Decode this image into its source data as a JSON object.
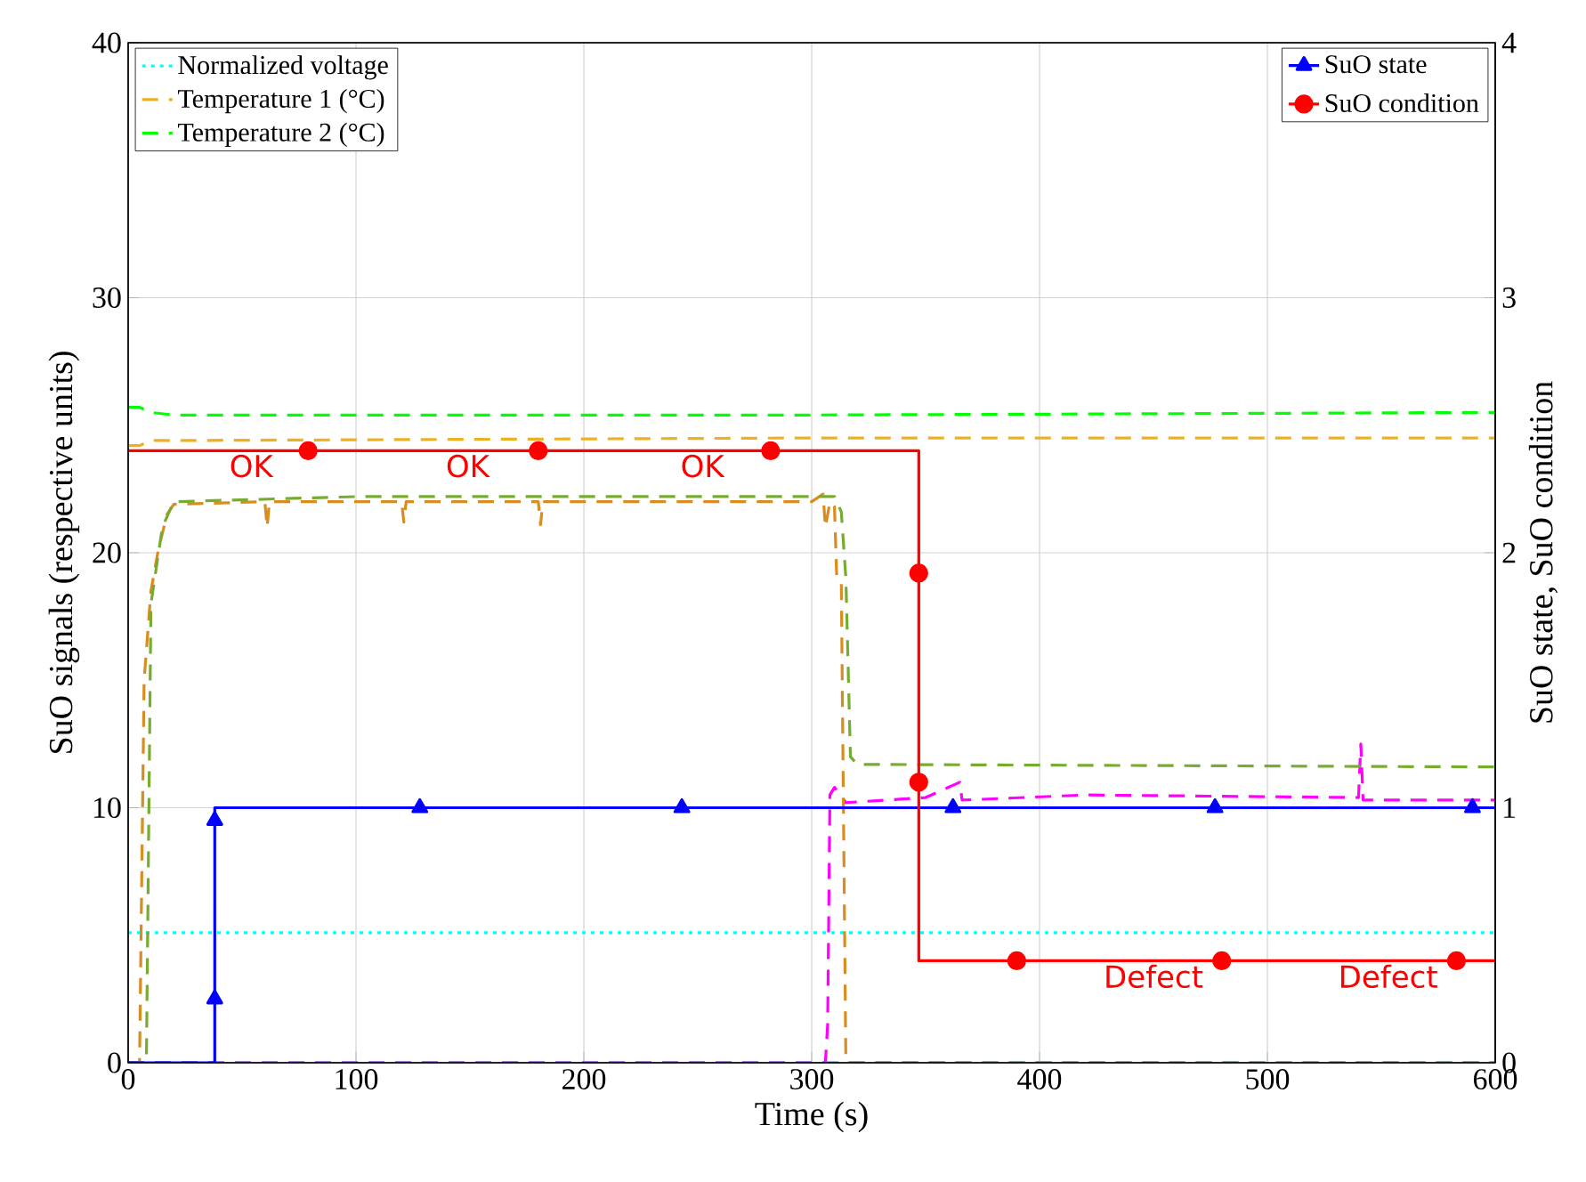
{
  "chart_data": {
    "type": "line",
    "xlabel": "Time (s)",
    "ylabel": "SuO signals (respective units)",
    "y2label": "SuO state, SuO condition",
    "xlim": [
      0,
      600
    ],
    "xticks": [
      0,
      100,
      200,
      300,
      400,
      500,
      600
    ],
    "ylim": [
      0,
      40
    ],
    "yticks": [
      0,
      10,
      20,
      30,
      40
    ],
    "y2lim": [
      0,
      4
    ],
    "y2ticks": [
      0,
      1,
      2,
      3,
      4
    ],
    "grid": true,
    "legend": "top left",
    "series": [
      {
        "name": "Normalized  voltage",
        "color": "#00ffff",
        "line_style": "dotted",
        "x": [
          0,
          600
        ],
        "values": [
          5.1,
          5.1
        ]
      },
      {
        "name": "Temperature 1 (°C)",
        "color": "#edb120",
        "line_style": "dashed",
        "x": [
          0,
          5,
          10,
          20,
          300,
          600
        ],
        "values": [
          24.2,
          24.2,
          24.4,
          24.4,
          24.5,
          24.5
        ]
      },
      {
        "name": "Temperature 2 (°C)",
        "color": "#00ff00",
        "line_style": "dashed",
        "x": [
          0,
          5,
          10,
          20,
          300,
          600
        ],
        "values": [
          25.7,
          25.7,
          25.5,
          25.4,
          25.4,
          25.5
        ]
      },
      {
        "color": "#ff00ff",
        "line_style": "dashed",
        "x": [
          0,
          306,
          307,
          308,
          310,
          315,
          350,
          365,
          366,
          420,
          540,
          541,
          542,
          600
        ],
        "values": [
          0,
          0,
          1.5,
          10.5,
          10.8,
          10.2,
          10.4,
          11.0,
          10.3,
          10.5,
          10.4,
          12.5,
          10.3,
          10.3
        ]
      },
      {
        "color": "#d98c1f",
        "line_style": "dashed",
        "x": [
          0,
          5,
          7,
          10,
          13,
          17,
          20,
          60,
          61,
          62,
          120,
          121,
          122,
          180,
          181,
          182,
          300,
          305,
          306,
          308,
          310,
          311,
          313,
          315,
          600
        ],
        "values": [
          0,
          0,
          15,
          18.5,
          20,
          21.5,
          21.9,
          22,
          21.0,
          22,
          22,
          21.2,
          22,
          22,
          21.1,
          22,
          22,
          22.3,
          21,
          22,
          21.8,
          19,
          18.8,
          0,
          0
        ]
      },
      {
        "color": "#77ac30",
        "line_style": "dashed",
        "x": [
          0,
          8,
          10,
          15,
          20,
          100,
          310,
          313,
          315,
          317,
          320,
          600
        ],
        "values": [
          0,
          0,
          18,
          21,
          22,
          22.2,
          22.2,
          21.6,
          19,
          12,
          11.7,
          11.6
        ]
      },
      {
        "color": "#3f7f9f",
        "line_style": "dashed",
        "x": [
          0,
          600
        ],
        "values": [
          0,
          0
        ]
      },
      {
        "name": "SuO state",
        "axis": "y2",
        "color": "#0000ff",
        "line_style": "solid",
        "marker": "triangle",
        "x": [
          0,
          38,
          38,
          38,
          38,
          128,
          243,
          362,
          477,
          590,
          600
        ],
        "values": [
          0,
          0,
          0.25,
          0.95,
          1,
          1,
          1,
          1,
          1,
          1,
          1
        ]
      },
      {
        "name": "SuO condition",
        "axis": "y2",
        "color": "#ff0000",
        "line_style": "solid",
        "marker": "circle",
        "x": [
          0,
          79,
          180,
          282,
          347,
          347,
          347,
          347,
          390,
          480,
          583,
          600
        ],
        "values": [
          2.4,
          2.4,
          2.4,
          2.4,
          2.4,
          1.92,
          1.1,
          0.4,
          0.4,
          0.4,
          0.4,
          0.4
        ]
      }
    ],
    "annotations": [
      {
        "text": "OK",
        "x": 54,
        "y": 24
      },
      {
        "text": "OK",
        "x": 149,
        "y": 24
      },
      {
        "text": "OK",
        "x": 252,
        "y": 24
      },
      {
        "text": "Defect",
        "x": 450,
        "y": 4
      },
      {
        "text": "Defect",
        "x": 553,
        "y": 4
      }
    ]
  }
}
